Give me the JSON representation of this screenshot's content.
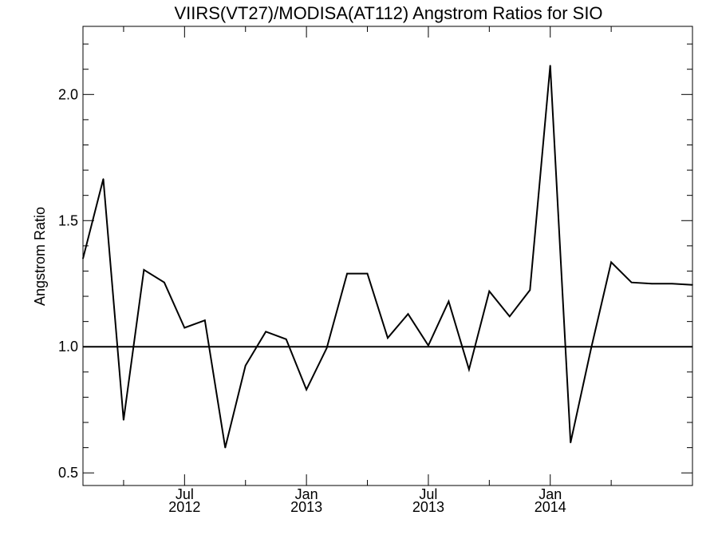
{
  "chart_data": {
    "type": "line",
    "title": "VIIRS(VT27)/MODISA(AT112)  Angstrom Ratios for SIO",
    "xlabel": "",
    "ylabel": "Angstrom Ratio",
    "ylim": [
      0.45,
      2.27
    ],
    "xlim": [
      "2012-02-01",
      "2014-08-01"
    ],
    "grid": false,
    "legend": "none",
    "line_color": "#000000",
    "reference_line": {
      "y": 1.0,
      "color": "#000000"
    },
    "y_ticks": [
      {
        "value": 0.5,
        "label": "0.5"
      },
      {
        "value": 1.0,
        "label": "1.0"
      },
      {
        "value": 1.5,
        "label": "1.5"
      },
      {
        "value": 2.0,
        "label": "2.0"
      }
    ],
    "x_ticks": [
      {
        "date": "2012-07-01",
        "month": "Jul",
        "year": "2012"
      },
      {
        "date": "2013-01-01",
        "month": "Jan",
        "year": "2013"
      },
      {
        "date": "2013-07-01",
        "month": "Jul",
        "year": "2013"
      },
      {
        "date": "2014-01-01",
        "month": "Jan",
        "year": "2014"
      }
    ],
    "series": [
      {
        "x": [
          "2012-02-01",
          "2012-03-01",
          "2012-04-01",
          "2012-05-01",
          "2012-06-01",
          "2012-07-01",
          "2012-08-01",
          "2012-09-01",
          "2012-10-01",
          "2012-11-01",
          "2012-12-01",
          "2013-01-01",
          "2013-02-01",
          "2013-03-01",
          "2013-04-01",
          "2013-05-01",
          "2013-06-01",
          "2013-07-01",
          "2013-08-01",
          "2013-09-01",
          "2013-10-01",
          "2013-11-01",
          "2013-12-01",
          "2014-01-01",
          "2014-02-01",
          "2014-03-01",
          "2014-04-01",
          "2014-05-01",
          "2014-06-01",
          "2014-07-01",
          "2014-08-01"
        ],
        "values": [
          1.35,
          1.665,
          0.71,
          1.305,
          1.255,
          1.075,
          1.105,
          0.6,
          0.925,
          1.06,
          1.03,
          0.83,
          0.995,
          1.29,
          1.29,
          1.035,
          1.13,
          1.005,
          1.18,
          0.91,
          1.22,
          1.12,
          1.225,
          2.115,
          0.62,
          0.99,
          1.335,
          1.255,
          1.25,
          1.25,
          1.245
        ]
      }
    ]
  }
}
